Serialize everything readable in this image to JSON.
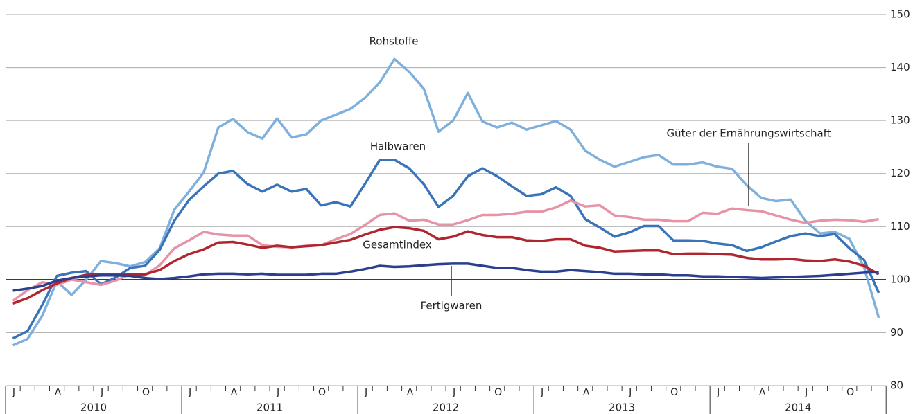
{
  "chart_data": {
    "type": "line",
    "categories": [
      "J",
      null,
      null,
      "A",
      null,
      null,
      "J",
      null,
      null,
      "O",
      null,
      null,
      "J",
      null,
      null,
      "A",
      null,
      null,
      "J",
      null,
      null,
      "O",
      null,
      null,
      "J",
      null,
      null,
      "A",
      null,
      null,
      "J",
      null,
      null,
      "O",
      null,
      null,
      "J",
      null,
      null,
      "A",
      null,
      null,
      "J",
      null,
      null,
      "O",
      null,
      null,
      "J",
      null,
      null,
      "A",
      null,
      null,
      "J",
      null,
      null,
      "O",
      null,
      null
    ],
    "groups": [
      "2010",
      "2011",
      "2012",
      "2013",
      "2014"
    ],
    "ylim": [
      80,
      150
    ],
    "yticks": [
      80,
      90,
      100,
      110,
      120,
      130,
      140,
      150
    ],
    "grid": true,
    "baseline": 100,
    "annotations": [
      "Rohstoffe",
      "Halbwaren",
      "Güter der Ernährungswirtschaft",
      "Gesamtindex",
      "Fertigwaren"
    ],
    "series": [
      {
        "name": "Rohstoffe",
        "color": "#7fb0dc",
        "values": [
          87.6,
          88.8,
          93.2,
          99.7,
          97.1,
          100,
          103.5,
          103.1,
          102.5,
          103.3,
          105.9,
          113.2,
          116.6,
          120.2,
          128.7,
          130.3,
          127.8,
          126.6,
          130.4,
          126.8,
          127.4,
          130.0,
          131.1,
          132.2,
          134.3,
          137.2,
          141.6,
          139.2,
          136.0,
          127.9,
          130.0,
          135.2,
          129.8,
          128.7,
          129.6,
          128.3,
          129.1,
          129.9,
          128.3,
          124.3,
          122.6,
          121.3,
          122.2,
          123.1,
          123.5,
          121.7,
          121.7,
          122.1,
          121.3,
          120.9,
          117.8,
          115.4,
          114.8,
          115.1,
          111.1,
          108.7,
          109.0,
          107.7,
          102.3,
          92.8
        ]
      },
      {
        "name": "Halbwaren",
        "color": "#3a74b8",
        "values": [
          88.9,
          90.3,
          95.2,
          100.7,
          101.3,
          101.6,
          99.1,
          100.4,
          102.2,
          102.6,
          105.6,
          111.1,
          115.0,
          117.6,
          120.0,
          120.5,
          118.0,
          116.6,
          117.9,
          116.6,
          117.1,
          114.0,
          114.6,
          113.8,
          118.1,
          122.6,
          122.6,
          121.0,
          118.0,
          113.7,
          115.8,
          119.5,
          121.0,
          119.5,
          117.6,
          115.8,
          116.1,
          117.4,
          115.8,
          111.4,
          109.8,
          108.1,
          108.9,
          110.1,
          110.1,
          107.4,
          107.4,
          107.3,
          106.8,
          106.5,
          105.4,
          106.1,
          107.2,
          108.2,
          108.7,
          108.2,
          108.6,
          105.9,
          103.7,
          97.5
        ]
      },
      {
        "name": "Güter der Ernährungswirtschaft",
        "color": "#e693a8",
        "values": [
          96.0,
          98.0,
          99.5,
          99.0,
          100.0,
          99.5,
          99.0,
          99.8,
          101.0,
          100.8,
          102.7,
          105.9,
          107.4,
          109.0,
          108.5,
          108.3,
          108.3,
          106.5,
          106.2,
          106.1,
          106.4,
          106.5,
          107.6,
          108.6,
          110.3,
          112.2,
          112.5,
          111.1,
          111.3,
          110.4,
          110.4,
          111.2,
          112.2,
          112.2,
          112.4,
          112.8,
          112.8,
          113.6,
          114.9,
          113.8,
          114.0,
          112.1,
          111.8,
          111.3,
          111.3,
          111.0,
          111.0,
          112.6,
          112.4,
          113.4,
          113.1,
          112.9,
          112.1,
          111.3,
          110.7,
          111.1,
          111.3,
          111.2,
          110.9,
          111.4
        ]
      },
      {
        "name": "Gesamtindex",
        "color": "#b0262f",
        "values": [
          95.5,
          96.5,
          98.0,
          99.3,
          100.3,
          100.9,
          101.0,
          101.0,
          101.0,
          101.0,
          101.8,
          103.5,
          104.8,
          105.7,
          107.0,
          107.1,
          106.6,
          106.0,
          106.4,
          106.1,
          106.3,
          106.5,
          107.0,
          107.5,
          108.5,
          109.4,
          109.9,
          109.7,
          109.2,
          107.6,
          108.1,
          109.1,
          108.4,
          108.0,
          108.0,
          107.4,
          107.3,
          107.6,
          107.6,
          106.4,
          106.0,
          105.3,
          105.4,
          105.5,
          105.5,
          104.8,
          104.9,
          104.9,
          104.8,
          104.7,
          104.1,
          103.8,
          103.8,
          103.9,
          103.6,
          103.5,
          103.8,
          103.4,
          102.6,
          101.0
        ]
      },
      {
        "name": "Fertigwaren",
        "color": "#2a3f8f",
        "values": [
          97.9,
          98.3,
          98.8,
          99.8,
          100.3,
          100.6,
          100.8,
          100.8,
          100.7,
          100.3,
          100.1,
          100.3,
          100.6,
          101.0,
          101.1,
          101.1,
          101.0,
          101.1,
          100.9,
          100.9,
          100.9,
          101.1,
          101.1,
          101.5,
          102.0,
          102.6,
          102.4,
          102.5,
          102.7,
          102.9,
          103.0,
          103.0,
          102.6,
          102.2,
          102.2,
          101.8,
          101.5,
          101.5,
          101.8,
          101.6,
          101.4,
          101.1,
          101.1,
          101.0,
          101.0,
          100.8,
          100.8,
          100.6,
          100.6,
          100.5,
          100.4,
          100.3,
          100.4,
          100.5,
          100.6,
          100.7,
          100.9,
          101.1,
          101.3,
          101.4
        ]
      }
    ]
  }
}
